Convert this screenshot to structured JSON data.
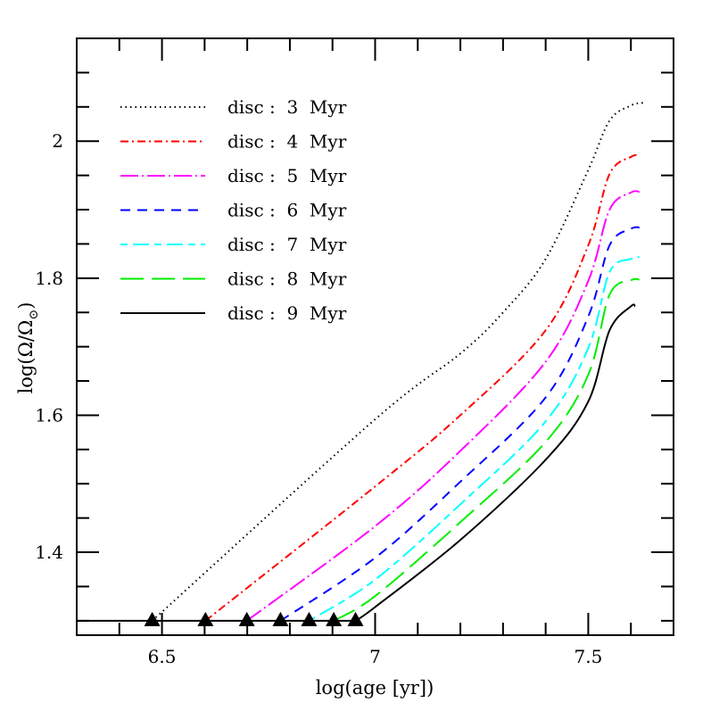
{
  "chart_data": {
    "type": "line",
    "title": "",
    "xlabel": "log(age [yr])",
    "ylabel": "log(Ω/Ω⊙)",
    "xlim": [
      6.3,
      7.7
    ],
    "ylim": [
      1.279,
      2.15
    ],
    "x_ticks_major": [
      6.5,
      7,
      7.5
    ],
    "x_tick_labels": [
      "6.5",
      "7",
      "7.5"
    ],
    "x_minor_step": 0.1,
    "y_ticks_major": [
      1.4,
      1.6,
      1.8,
      2.0
    ],
    "y_tick_labels": [
      "1.4",
      "1.6",
      "1.8",
      "2"
    ],
    "y_minor_step": 0.05,
    "grid": false,
    "legend_position": "upper-left",
    "baseline_value": 1.3,
    "baseline_start": 6.3,
    "markers": {
      "shape": "triangle",
      "color": "#000000",
      "points": [
        {
          "x": 6.477,
          "y": 1.3
        },
        {
          "x": 6.602,
          "y": 1.3
        },
        {
          "x": 6.699,
          "y": 1.3
        },
        {
          "x": 6.778,
          "y": 1.3
        },
        {
          "x": 6.845,
          "y": 1.3
        },
        {
          "x": 6.903,
          "y": 1.3
        },
        {
          "x": 6.954,
          "y": 1.3
        }
      ]
    },
    "series": [
      {
        "name": "disc : 3 Myr",
        "color": "#000000",
        "dash": "1.5,4",
        "x": [
          6.477,
          7.0,
          7.2,
          7.3,
          7.4,
          7.5,
          7.55,
          7.6,
          7.63
        ],
        "y": [
          1.3,
          1.594,
          1.69,
          1.75,
          1.828,
          1.958,
          2.03,
          2.052,
          2.056
        ]
      },
      {
        "name": "disc : 4 Myr",
        "color": "#ff0000",
        "dash": "9,4,2,4",
        "x": [
          6.602,
          7.0,
          7.2,
          7.4,
          7.5,
          7.55,
          7.6,
          7.62
        ],
        "y": [
          1.3,
          1.496,
          1.6,
          1.724,
          1.848,
          1.952,
          1.977,
          1.979
        ]
      },
      {
        "name": "disc : 5 Myr",
        "color": "#ff00ff",
        "dash": "20,4,2,4",
        "x": [
          6.699,
          7.0,
          7.2,
          7.4,
          7.5,
          7.55,
          7.6,
          7.62
        ],
        "y": [
          1.3,
          1.438,
          1.548,
          1.678,
          1.796,
          1.9,
          1.925,
          1.926
        ]
      },
      {
        "name": "disc : 6 Myr",
        "color": "#0000ff",
        "dash": "11,8",
        "x": [
          6.778,
          7.0,
          7.2,
          7.4,
          7.5,
          7.55,
          7.6,
          7.62
        ],
        "y": [
          1.3,
          1.392,
          1.503,
          1.626,
          1.744,
          1.848,
          1.872,
          1.874
        ]
      },
      {
        "name": "disc : 7 Myr",
        "color": "#00ffff",
        "dash": "8,6,18,6",
        "x": [
          6.845,
          7.0,
          7.2,
          7.4,
          7.5,
          7.55,
          7.6,
          7.62
        ],
        "y": [
          1.3,
          1.36,
          1.47,
          1.591,
          1.698,
          1.809,
          1.828,
          1.831
        ]
      },
      {
        "name": "disc : 8 Myr",
        "color": "#00ee00",
        "dash": "26,9",
        "x": [
          6.903,
          7.0,
          7.2,
          7.4,
          7.5,
          7.55,
          7.6,
          7.62
        ],
        "y": [
          1.3,
          1.336,
          1.444,
          1.561,
          1.659,
          1.776,
          1.797,
          1.798
        ]
      },
      {
        "name": "disc : 9 Myr",
        "color": "#000000",
        "dash": "",
        "x": [
          6.954,
          7.0,
          7.2,
          7.4,
          7.5,
          7.55,
          7.6,
          7.61
        ],
        "y": [
          1.3,
          1.32,
          1.418,
          1.535,
          1.62,
          1.724,
          1.759,
          1.759
        ]
      }
    ]
  },
  "legend": {
    "items": [
      {
        "label": "disc : 3 Myr"
      },
      {
        "label": "disc : 4 Myr"
      },
      {
        "label": "disc : 5 Myr"
      },
      {
        "label": "disc : 6 Myr"
      },
      {
        "label": "disc : 7 Myr"
      },
      {
        "label": "disc : 8 Myr"
      },
      {
        "label": "disc : 9 Myr"
      }
    ]
  },
  "axes": {
    "xlabel": "log(age [yr])",
    "ylabel_main": "log(Ω/Ω",
    "ylabel_sub": "⊙",
    "ylabel_close": ")"
  }
}
